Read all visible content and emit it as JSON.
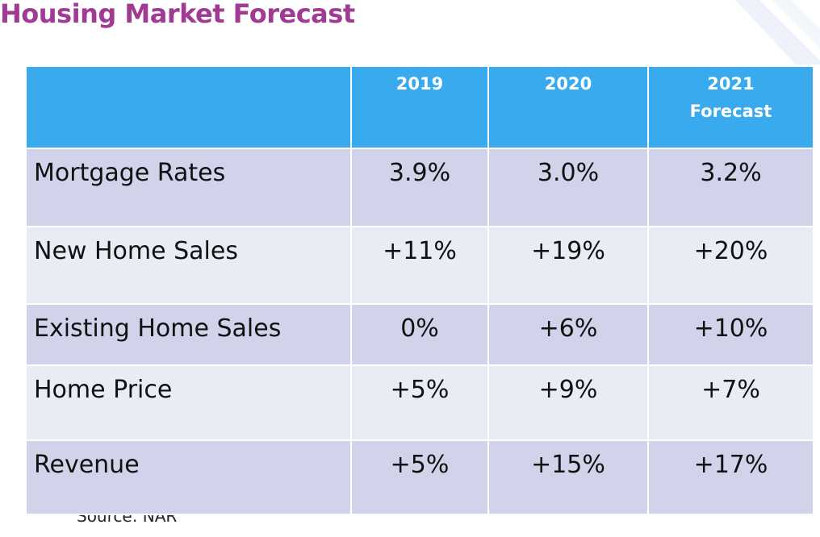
{
  "title": "Housing Market Forecast",
  "source": "Source: NAR",
  "colors": {
    "title": "#a03a93",
    "header_bg": "#39aaed",
    "row_odd": "#d1d3ea",
    "row_even": "#e9ebf5"
  },
  "table": {
    "headers": [
      [
        ""
      ],
      [
        "2019"
      ],
      [
        "2020"
      ],
      [
        "2021",
        "Forecast"
      ]
    ],
    "rows": [
      [
        "Mortgage Rates",
        "3.9%",
        "3.0%",
        "3.2%"
      ],
      [
        "New Home Sales",
        "+11%",
        "+19%",
        "+20%"
      ],
      [
        "Existing Home Sales",
        "0%",
        "+6%",
        "+10%"
      ],
      [
        "Home Price",
        "+5%",
        "+9%",
        "+7%"
      ],
      [
        "Revenue",
        "+5%",
        "+15%",
        "+17%"
      ]
    ]
  }
}
